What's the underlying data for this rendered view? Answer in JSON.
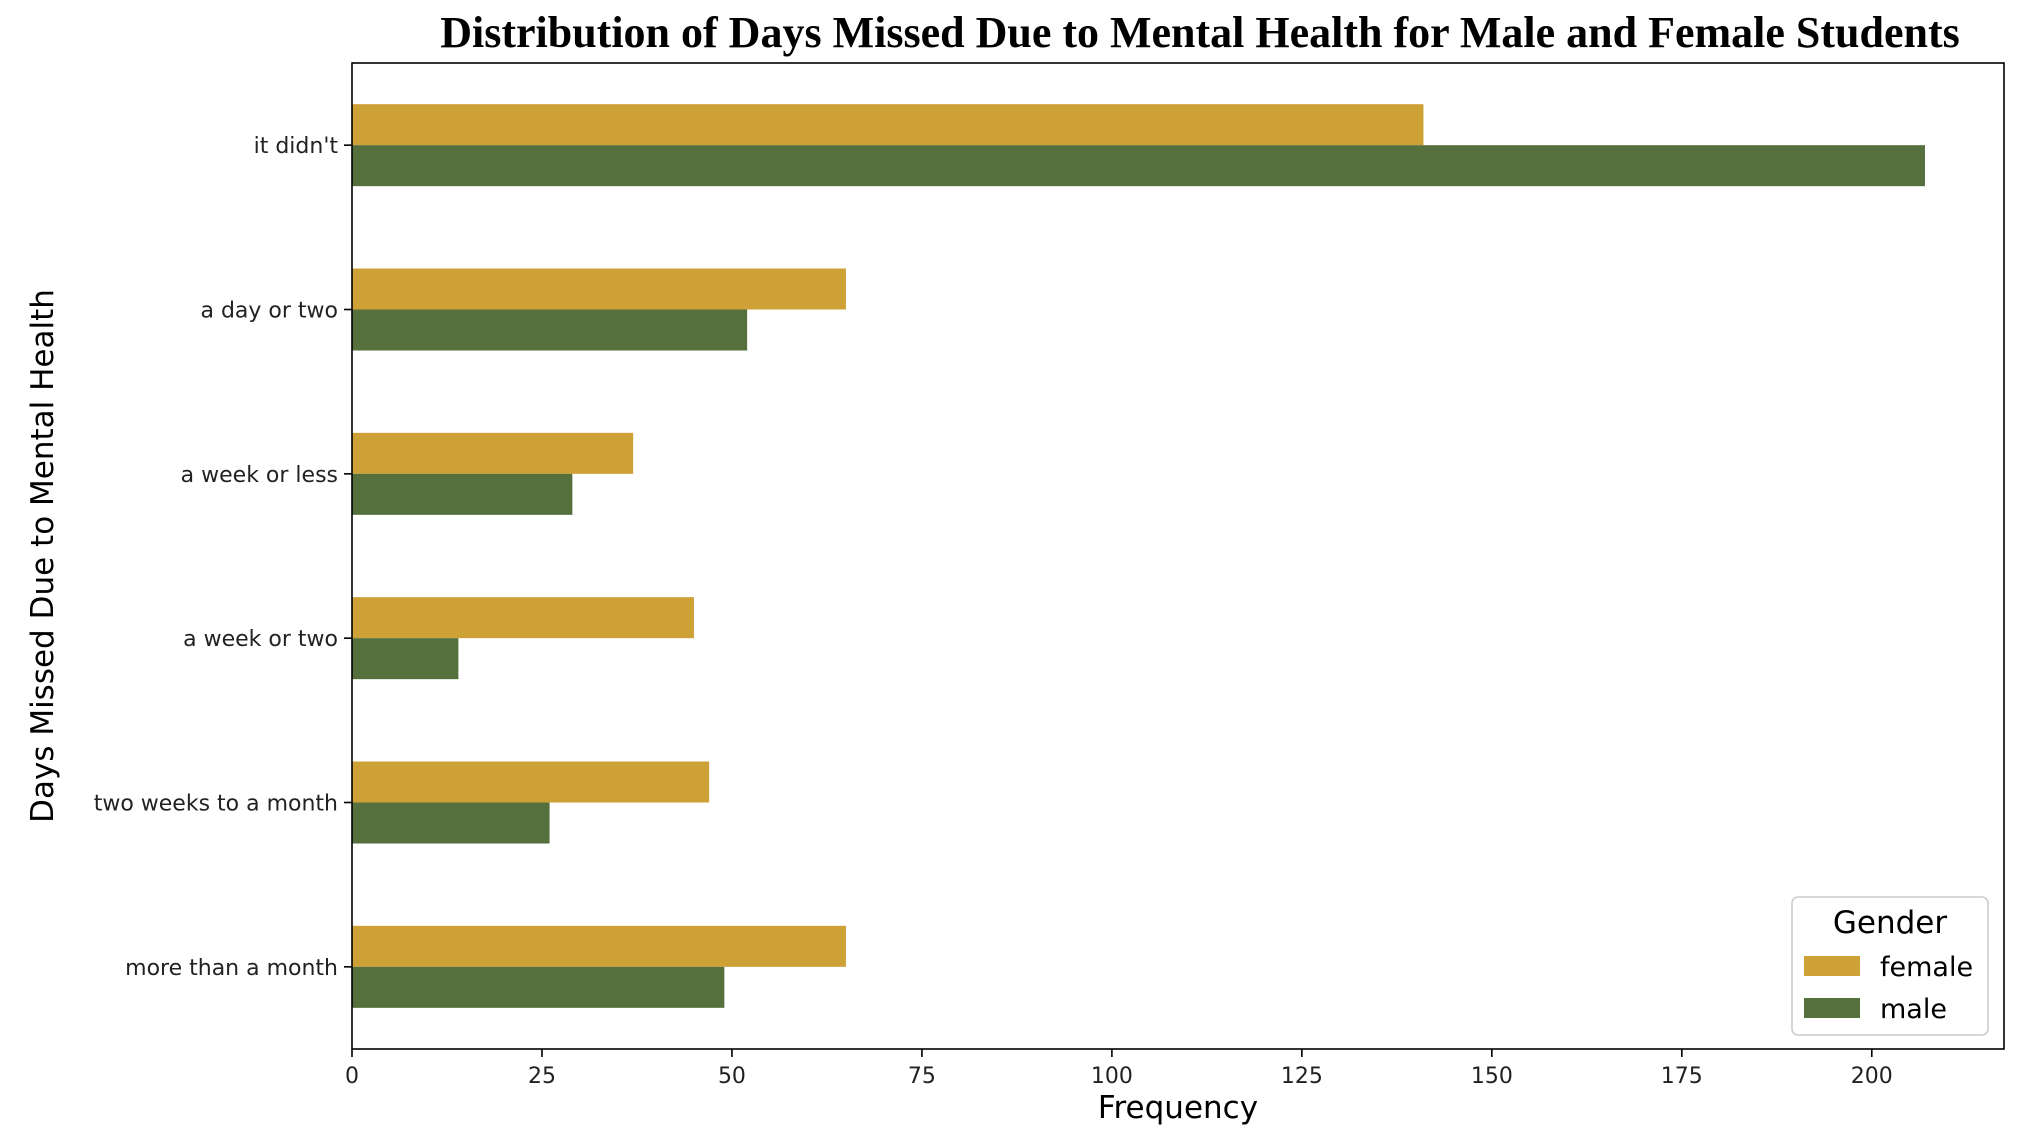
{
  "chart_data": {
    "type": "bar",
    "orientation": "horizontal",
    "title": "Distribution of Days Missed Due to Mental Health for Male and Female Students",
    "xlabel": "Frequency",
    "ylabel": "Days Missed Due to Mental Health",
    "categories": [
      "it didn't",
      "a day or two",
      "a week or less",
      "a week or two",
      "two weeks to a month",
      "more than a month"
    ],
    "series": [
      {
        "name": "female",
        "color": "#CDA135",
        "values": [
          141,
          65,
          37,
          45,
          47,
          65
        ]
      },
      {
        "name": "male",
        "color": "#556F3D",
        "values": [
          207,
          52,
          29,
          14,
          26,
          49
        ]
      }
    ],
    "xlim": [
      0,
      217.4
    ],
    "xticks": [
      0,
      25,
      50,
      75,
      100,
      125,
      150,
      175,
      200
    ],
    "grid": false,
    "legend": {
      "title": "Gender",
      "position": "lower-right"
    }
  }
}
